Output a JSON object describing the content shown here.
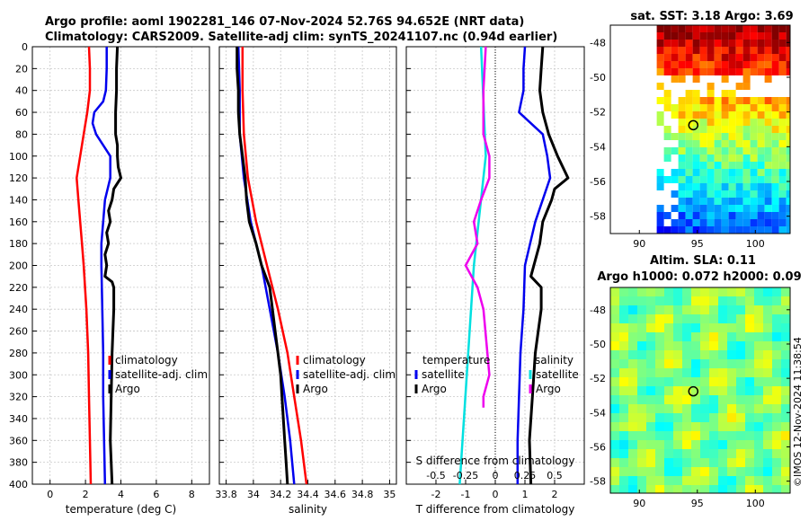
{
  "header": {
    "line1": "Argo profile: aoml 1902281_146 07-Nov-2024 52.76S 94.652E (NRT data)",
    "line2": "Climatology: CARS2009. Satellite-adj clim: synTS_20241107.nc (0.94d earlier)"
  },
  "colors": {
    "climatology": "#ff0000",
    "satellite": "#0000ee",
    "argo": "#000000",
    "sat_salinity": "#00e0e0",
    "argo_salinity": "#ee00ee"
  },
  "chart_data": [
    {
      "type": "line",
      "panel": "temperature",
      "xlabel": "temperature (deg C)",
      "xlim": [
        -1,
        9
      ],
      "xticks": [
        0,
        2,
        4,
        6,
        8
      ],
      "ylim": [
        400,
        0
      ],
      "yticks": [
        0,
        20,
        40,
        60,
        80,
        100,
        120,
        140,
        160,
        180,
        200,
        220,
        240,
        260,
        280,
        300,
        320,
        340,
        360,
        380,
        400
      ],
      "legend": [
        "climatology",
        "satellite-adj. clim",
        "Argo"
      ],
      "series": [
        {
          "name": "climatology",
          "depth": [
            0,
            20,
            40,
            60,
            80,
            100,
            120,
            140,
            160,
            180,
            200,
            240,
            280,
            320,
            360,
            400
          ],
          "values": [
            2.2,
            2.25,
            2.25,
            2.1,
            1.9,
            1.7,
            1.5,
            1.6,
            1.7,
            1.8,
            1.9,
            2.05,
            2.15,
            2.2,
            2.25,
            2.3
          ]
        },
        {
          "name": "satellite-adj. clim",
          "depth": [
            0,
            20,
            40,
            50,
            60,
            70,
            80,
            100,
            120,
            140,
            160,
            180,
            200,
            240,
            280,
            320,
            360,
            400
          ],
          "values": [
            3.2,
            3.2,
            3.15,
            3.0,
            2.5,
            2.4,
            2.6,
            3.4,
            3.4,
            3.1,
            3.0,
            2.9,
            2.9,
            2.95,
            3.0,
            3.0,
            3.05,
            3.1
          ]
        },
        {
          "name": "Argo",
          "depth": [
            0,
            20,
            40,
            60,
            80,
            90,
            100,
            110,
            120,
            130,
            140,
            150,
            160,
            170,
            180,
            190,
            200,
            210,
            215,
            220,
            240,
            280,
            320,
            360,
            400
          ],
          "values": [
            3.8,
            3.75,
            3.75,
            3.7,
            3.7,
            3.8,
            3.8,
            3.85,
            4.0,
            3.6,
            3.5,
            3.3,
            3.4,
            3.2,
            3.3,
            3.1,
            3.2,
            3.1,
            3.5,
            3.6,
            3.6,
            3.5,
            3.45,
            3.4,
            3.5
          ]
        }
      ]
    },
    {
      "type": "line",
      "panel": "salinity",
      "xlabel": "salinity",
      "xlim": [
        33.75,
        35.05
      ],
      "xticks": [
        33.8,
        34,
        34.2,
        34.4,
        34.6,
        34.8,
        35
      ],
      "ylim": [
        400,
        0
      ],
      "legend": [
        "climatology",
        "satellite-adj. clim",
        "Argo"
      ],
      "series": [
        {
          "name": "climatology",
          "depth": [
            0,
            40,
            80,
            120,
            160,
            200,
            240,
            280,
            320,
            360,
            400
          ],
          "values": [
            33.92,
            33.92,
            33.93,
            33.96,
            34.02,
            34.1,
            34.18,
            34.25,
            34.3,
            34.35,
            34.39
          ]
        },
        {
          "name": "satellite-adj. clim",
          "depth": [
            0,
            40,
            80,
            120,
            160,
            200,
            240,
            280,
            320,
            360,
            400
          ],
          "values": [
            33.89,
            33.9,
            33.9,
            33.93,
            33.98,
            34.06,
            34.12,
            34.18,
            34.23,
            34.27,
            34.3
          ]
        },
        {
          "name": "Argo",
          "depth": [
            0,
            20,
            40,
            60,
            80,
            100,
            120,
            140,
            160,
            180,
            200,
            220,
            240,
            260,
            280,
            300,
            320,
            340,
            360,
            380,
            400
          ],
          "values": [
            33.88,
            33.88,
            33.89,
            33.89,
            33.9,
            33.92,
            33.94,
            33.95,
            33.97,
            34.02,
            34.06,
            34.12,
            34.14,
            34.16,
            34.18,
            34.2,
            34.21,
            34.22,
            34.23,
            34.24,
            34.25
          ]
        }
      ]
    },
    {
      "type": "line",
      "panel": "difference",
      "xlabel": "T difference from climatology",
      "xlim": [
        -3,
        3
      ],
      "xticks": [
        -2,
        -1,
        0,
        1,
        2
      ],
      "secondary_xlabel": "S difference from climatology",
      "secondary_xticks": [
        "-0.5",
        "-0.25",
        "0",
        "0.25",
        "0.5"
      ],
      "legend_temperature_title": "temperature",
      "legend_temperature": [
        "satellite",
        "Argo"
      ],
      "legend_salinity_title": "salinity",
      "legend_salinity": [
        "satellite",
        "Argo"
      ],
      "series": [
        {
          "name": "temperature satellite",
          "depth": [
            0,
            20,
            40,
            60,
            80,
            100,
            120,
            160,
            200,
            240,
            280,
            320,
            360,
            400
          ],
          "values": [
            1.0,
            0.95,
            0.95,
            0.8,
            1.6,
            1.75,
            1.85,
            1.35,
            1.0,
            0.95,
            0.85,
            0.8,
            0.75,
            0.75
          ]
        },
        {
          "name": "temperature Argo",
          "depth": [
            0,
            20,
            40,
            60,
            80,
            100,
            120,
            130,
            140,
            160,
            180,
            200,
            210,
            220,
            240,
            280,
            320,
            360,
            400
          ],
          "values": [
            1.6,
            1.55,
            1.5,
            1.6,
            1.8,
            2.1,
            2.45,
            2.0,
            1.9,
            1.6,
            1.5,
            1.3,
            1.2,
            1.55,
            1.55,
            1.35,
            1.25,
            1.15,
            1.2
          ]
        },
        {
          "name": "salinity satellite",
          "depth": [
            0,
            100,
            200,
            300,
            400
          ],
          "values": [
            -0.12,
            -0.08,
            -0.18,
            -0.24,
            -0.3
          ]
        },
        {
          "name": "salinity Argo",
          "depth": [
            0,
            40,
            80,
            100,
            120,
            140,
            160,
            180,
            200,
            220,
            240,
            300,
            320,
            330
          ],
          "values": [
            -0.08,
            -0.1,
            -0.1,
            -0.05,
            -0.05,
            -0.12,
            -0.18,
            -0.15,
            -0.25,
            -0.15,
            -0.1,
            -0.05,
            -0.1,
            -0.1
          ]
        }
      ]
    },
    {
      "type": "heatmap",
      "panel": "sst_map",
      "title": "sat. SST: 3.18 Argo: 3.69",
      "xlim": [
        87.5,
        103
      ],
      "xticks": [
        90,
        95,
        100
      ],
      "ylim": [
        -59,
        -47
      ],
      "yticks": [
        -48,
        -50,
        -52,
        -54,
        -56,
        -58
      ],
      "marker": [
        94.652,
        -52.76
      ]
    },
    {
      "type": "heatmap",
      "panel": "sla_map",
      "title_line1": "Altim. SLA: 0.11",
      "title_line2": "Argo h1000: 0.072 h2000: 0.09",
      "xlim": [
        87.5,
        103
      ],
      "xticks": [
        90,
        95,
        100
      ],
      "ylim": [
        -58.7,
        -46.7
      ],
      "yticks": [
        -48,
        -50,
        -52,
        -54,
        -56,
        -58
      ],
      "marker": [
        94.652,
        -52.76
      ]
    }
  ],
  "credit": "©IMOS 12-Nov-2024 11:38:54"
}
